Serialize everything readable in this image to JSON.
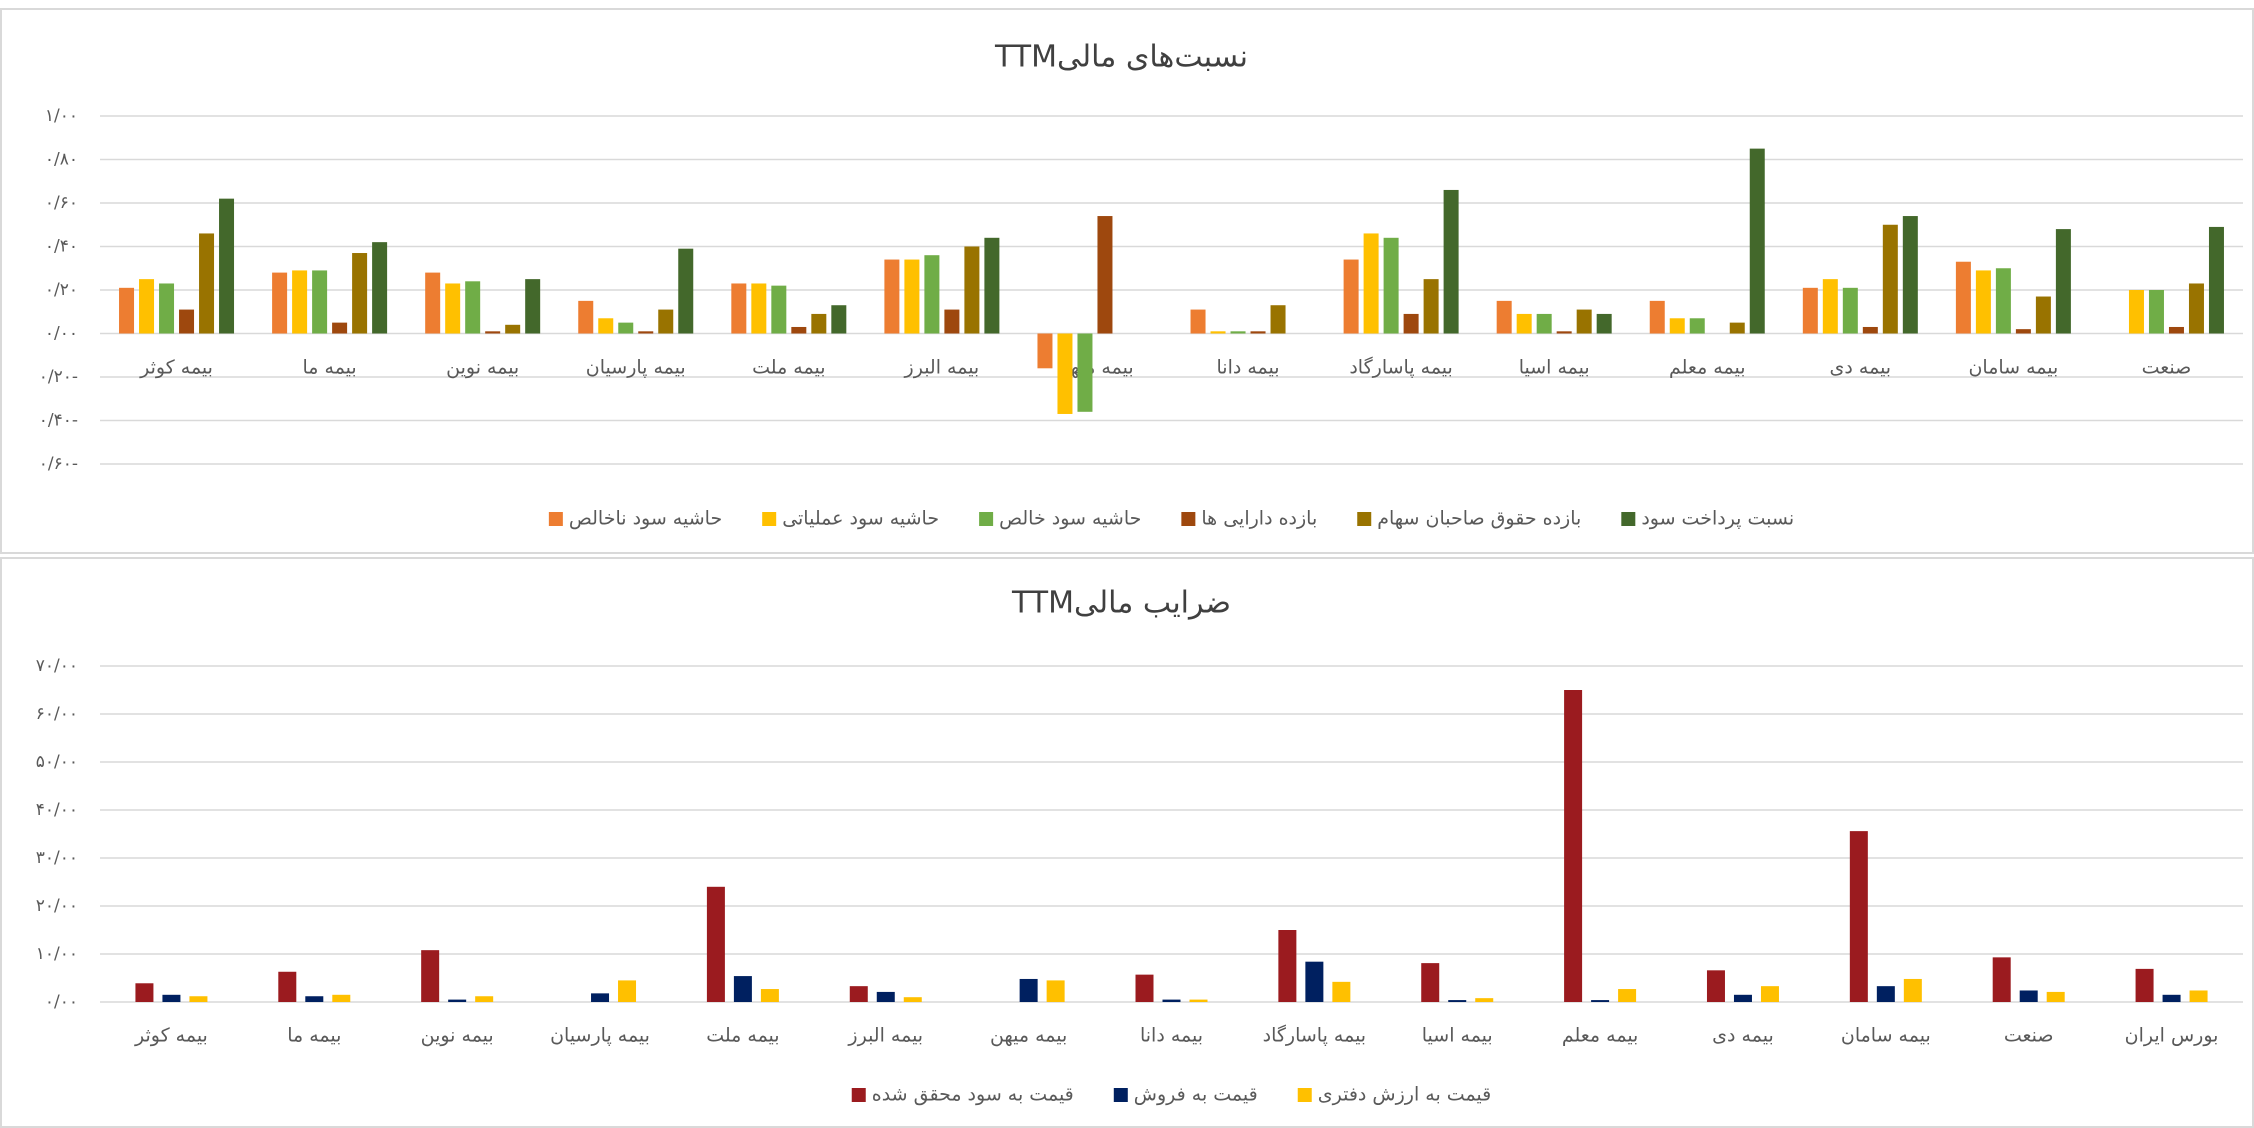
{
  "chart_data": [
    {
      "type": "bar",
      "title": "نسبت‌های مالیTTM",
      "categories": [
        "بیمه کوثر",
        "بیمه ما",
        "بیمه نوین",
        "بیمه پارسیان",
        "بیمه ملت",
        "بیمه البرز",
        "بیمه میهن",
        "بیمه دانا",
        "بیمه پاسارگاد",
        "بیمه اسیا",
        "بیمه معلم",
        "بیمه دی",
        "بیمه سامان",
        "صنعت"
      ],
      "series": [
        {
          "name": "حاشیه سود ناخالص",
          "color": "#ed7d31",
          "values": [
            0.21,
            0.28,
            0.28,
            0.15,
            0.23,
            0.34,
            -0.16,
            0.11,
            0.34,
            0.15,
            0.15,
            0.21,
            0.33,
            null
          ]
        },
        {
          "name": "حاشیه سود عملیاتی",
          "color": "#ffc000",
          "values": [
            0.25,
            0.29,
            0.23,
            0.07,
            0.23,
            0.34,
            -0.37,
            0.01,
            0.46,
            0.09,
            0.07,
            0.25,
            0.29,
            0.2
          ]
        },
        {
          "name": "حاشیه سود خالص",
          "color": "#70ad47",
          "values": [
            0.23,
            0.29,
            0.24,
            0.05,
            0.22,
            0.36,
            -0.36,
            0.01,
            0.44,
            0.09,
            0.07,
            0.21,
            0.3,
            0.2
          ]
        },
        {
          "name": "بازده دارایی ها",
          "color": "#9e480e",
          "values": [
            0.11,
            0.05,
            0.01,
            0.01,
            0.03,
            0.11,
            0.54,
            0.01,
            0.09,
            0.01,
            null,
            0.03,
            0.02,
            0.03
          ]
        },
        {
          "name": "بازده حقوق صاحبان سهام",
          "color": "#997300",
          "values": [
            0.46,
            0.37,
            0.04,
            0.11,
            0.09,
            0.4,
            null,
            0.13,
            0.25,
            0.11,
            0.05,
            0.5,
            0.17,
            0.23
          ]
        },
        {
          "name": "نسبت پرداخت سود",
          "color": "#43682b",
          "values": [
            0.62,
            0.42,
            0.25,
            0.39,
            0.13,
            0.44,
            null,
            null,
            0.66,
            0.09,
            0.85,
            0.54,
            0.48,
            0.49
          ]
        }
      ],
      "ylim": [
        -0.6,
        1.0
      ],
      "yticks": [
        {
          "value": -0.6,
          "label": "۰/۶۰-"
        },
        {
          "value": -0.4,
          "label": "۰/۴۰-"
        },
        {
          "value": -0.2,
          "label": "۰/۲۰-"
        },
        {
          "value": 0,
          "label": "۰/۰۰"
        },
        {
          "value": 0.2,
          "label": "۰/۲۰"
        },
        {
          "value": 0.4,
          "label": "۰/۴۰"
        },
        {
          "value": 0.6,
          "label": "۰/۶۰"
        },
        {
          "value": 0.8,
          "label": "۰/۸۰"
        },
        {
          "value": 1.0,
          "label": "۱/۰۰"
        }
      ],
      "grid": true,
      "legend": "bottom"
    },
    {
      "type": "bar",
      "title": "ضرایب مالیTTM",
      "categories": [
        "بیمه کوثر",
        "بیمه ما",
        "بیمه نوین",
        "بیمه پارسیان",
        "بیمه ملت",
        "بیمه البرز",
        "بیمه میهن",
        "بیمه دانا",
        "بیمه پاسارگاد",
        "بیمه اسیا",
        "بیمه معلم",
        "بیمه دی",
        "بیمه سامان",
        "صنعت",
        "بورس ایران"
      ],
      "series": [
        {
          "name": "قیمت به سود محقق شده",
          "color": "#9b1b1f",
          "values": [
            3.9,
            6.3,
            10.8,
            null,
            24.0,
            3.3,
            null,
            5.7,
            15.0,
            8.1,
            65.0,
            6.6,
            35.6,
            9.3,
            6.9
          ]
        },
        {
          "name": "قیمت به فروش",
          "color": "#002060",
          "values": [
            1.5,
            1.2,
            0.5,
            1.8,
            5.4,
            2.1,
            4.8,
            0.5,
            8.4,
            0.4,
            0.4,
            1.5,
            3.3,
            2.4,
            1.5
          ]
        },
        {
          "name": "قیمت به ارزش دفتری",
          "color": "#ffc000",
          "values": [
            1.2,
            1.5,
            1.2,
            4.5,
            2.7,
            1.0,
            4.5,
            0.5,
            4.2,
            0.8,
            2.7,
            3.3,
            4.8,
            2.1,
            2.4
          ]
        }
      ],
      "ylim": [
        0,
        70
      ],
      "yticks": [
        {
          "value": 0,
          "label": "۰/۰۰"
        },
        {
          "value": 10,
          "label": "۱۰/۰۰"
        },
        {
          "value": 20,
          "label": "۲۰/۰۰"
        },
        {
          "value": 30,
          "label": "۳۰/۰۰"
        },
        {
          "value": 40,
          "label": "۴۰/۰۰"
        },
        {
          "value": 50,
          "label": "۵۰/۰۰"
        },
        {
          "value": 60,
          "label": "۶۰/۰۰"
        },
        {
          "value": 70,
          "label": "۷۰/۰۰"
        }
      ],
      "grid": true,
      "legend": "bottom"
    }
  ]
}
